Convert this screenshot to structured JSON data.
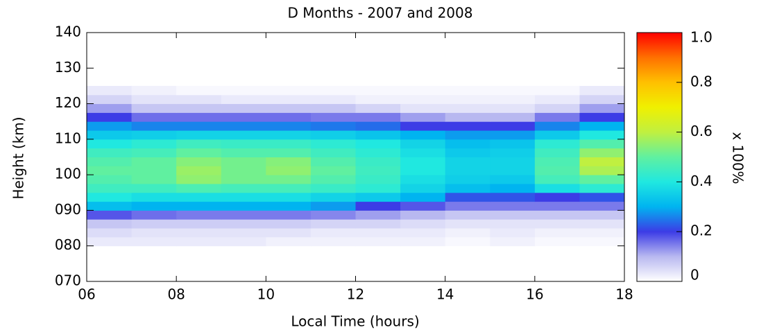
{
  "chart_data": {
    "type": "heatmap",
    "title": "D Months - 2007 and 2008",
    "x_label": "Local Time (hours)",
    "y_label": "Height (km)",
    "colorbar_label": "x 100%",
    "xlim": [
      6,
      18
    ],
    "ylim": [
      70,
      140
    ],
    "xticks": [
      {
        "value": 6,
        "label": "06"
      },
      {
        "value": 8,
        "label": "08"
      },
      10,
      12,
      14,
      16,
      18
    ],
    "yticks": [
      {
        "value": 70,
        "label": "070"
      },
      {
        "value": 80,
        "label": "080"
      },
      {
        "value": 90,
        "label": "090"
      },
      100,
      110,
      120,
      130,
      140
    ],
    "zlim": [
      0,
      1
    ],
    "zticks": [
      0,
      0.2,
      0.4,
      0.6,
      0.8,
      {
        "value": 1,
        "label": "1.0"
      }
    ],
    "colorscale": [
      "#ffffff",
      "#b8b8f0",
      "#3c3ce6",
      "#00b4f0",
      "#20e8e0",
      "#60f0a0",
      "#c0f040",
      "#f0f000",
      "#ffc000",
      "#ff7000",
      "#ff0000"
    ],
    "xbins": [
      6,
      7,
      8,
      9,
      10,
      11,
      12,
      13,
      14,
      15,
      16,
      17,
      18
    ],
    "ybins": [
      80,
      82.5,
      85,
      87.5,
      90,
      92.5,
      95,
      97.5,
      100,
      102.5,
      105,
      107.5,
      110,
      112.5,
      115,
      117.5,
      120,
      122.5,
      125
    ],
    "z": [
      [
        0.03,
        0.03,
        0.03,
        0.03,
        0.02,
        0.02,
        0.02,
        0.02,
        0.01,
        0.02,
        0.01,
        0.01
      ],
      [
        0.05,
        0.04,
        0.04,
        0.04,
        0.04,
        0.03,
        0.03,
        0.03,
        0.02,
        0.03,
        0.02,
        0.02
      ],
      [
        0.08,
        0.07,
        0.07,
        0.07,
        0.07,
        0.06,
        0.06,
        0.05,
        0.04,
        0.04,
        0.04,
        0.04
      ],
      [
        0.18,
        0.16,
        0.15,
        0.15,
        0.15,
        0.14,
        0.12,
        0.1,
        0.08,
        0.08,
        0.08,
        0.08
      ],
      [
        0.32,
        0.3,
        0.3,
        0.3,
        0.3,
        0.28,
        0.2,
        0.18,
        0.15,
        0.15,
        0.15,
        0.15
      ],
      [
        0.4,
        0.38,
        0.38,
        0.38,
        0.38,
        0.36,
        0.34,
        0.3,
        0.22,
        0.22,
        0.2,
        0.22
      ],
      [
        0.45,
        0.45,
        0.47,
        0.46,
        0.46,
        0.44,
        0.42,
        0.36,
        0.32,
        0.3,
        0.38,
        0.42
      ],
      [
        0.48,
        0.5,
        0.55,
        0.52,
        0.52,
        0.48,
        0.44,
        0.38,
        0.35,
        0.34,
        0.46,
        0.5
      ],
      [
        0.5,
        0.5,
        0.56,
        0.52,
        0.55,
        0.5,
        0.45,
        0.4,
        0.36,
        0.36,
        0.48,
        0.58
      ],
      [
        0.48,
        0.5,
        0.54,
        0.52,
        0.54,
        0.48,
        0.44,
        0.4,
        0.36,
        0.36,
        0.47,
        0.6
      ],
      [
        0.45,
        0.46,
        0.5,
        0.48,
        0.48,
        0.45,
        0.42,
        0.38,
        0.34,
        0.35,
        0.45,
        0.55
      ],
      [
        0.4,
        0.42,
        0.45,
        0.44,
        0.44,
        0.42,
        0.4,
        0.36,
        0.32,
        0.33,
        0.42,
        0.48
      ],
      [
        0.34,
        0.35,
        0.36,
        0.36,
        0.36,
        0.35,
        0.33,
        0.3,
        0.28,
        0.28,
        0.34,
        0.4
      ],
      [
        0.28,
        0.26,
        0.26,
        0.26,
        0.26,
        0.25,
        0.24,
        0.2,
        0.2,
        0.2,
        0.26,
        0.3
      ],
      [
        0.2,
        0.16,
        0.16,
        0.16,
        0.16,
        0.15,
        0.15,
        0.12,
        0.1,
        0.1,
        0.15,
        0.2
      ],
      [
        0.12,
        0.08,
        0.08,
        0.08,
        0.08,
        0.08,
        0.06,
        0.04,
        0.04,
        0.04,
        0.06,
        0.12
      ],
      [
        0.06,
        0.04,
        0.04,
        0.03,
        0.03,
        0.03,
        0.02,
        0.02,
        0.02,
        0.02,
        0.03,
        0.06
      ],
      [
        0.03,
        0.02,
        0.01,
        0.01,
        0.01,
        0.01,
        0.01,
        0.01,
        0.01,
        0.01,
        0.01,
        0.03
      ]
    ]
  }
}
